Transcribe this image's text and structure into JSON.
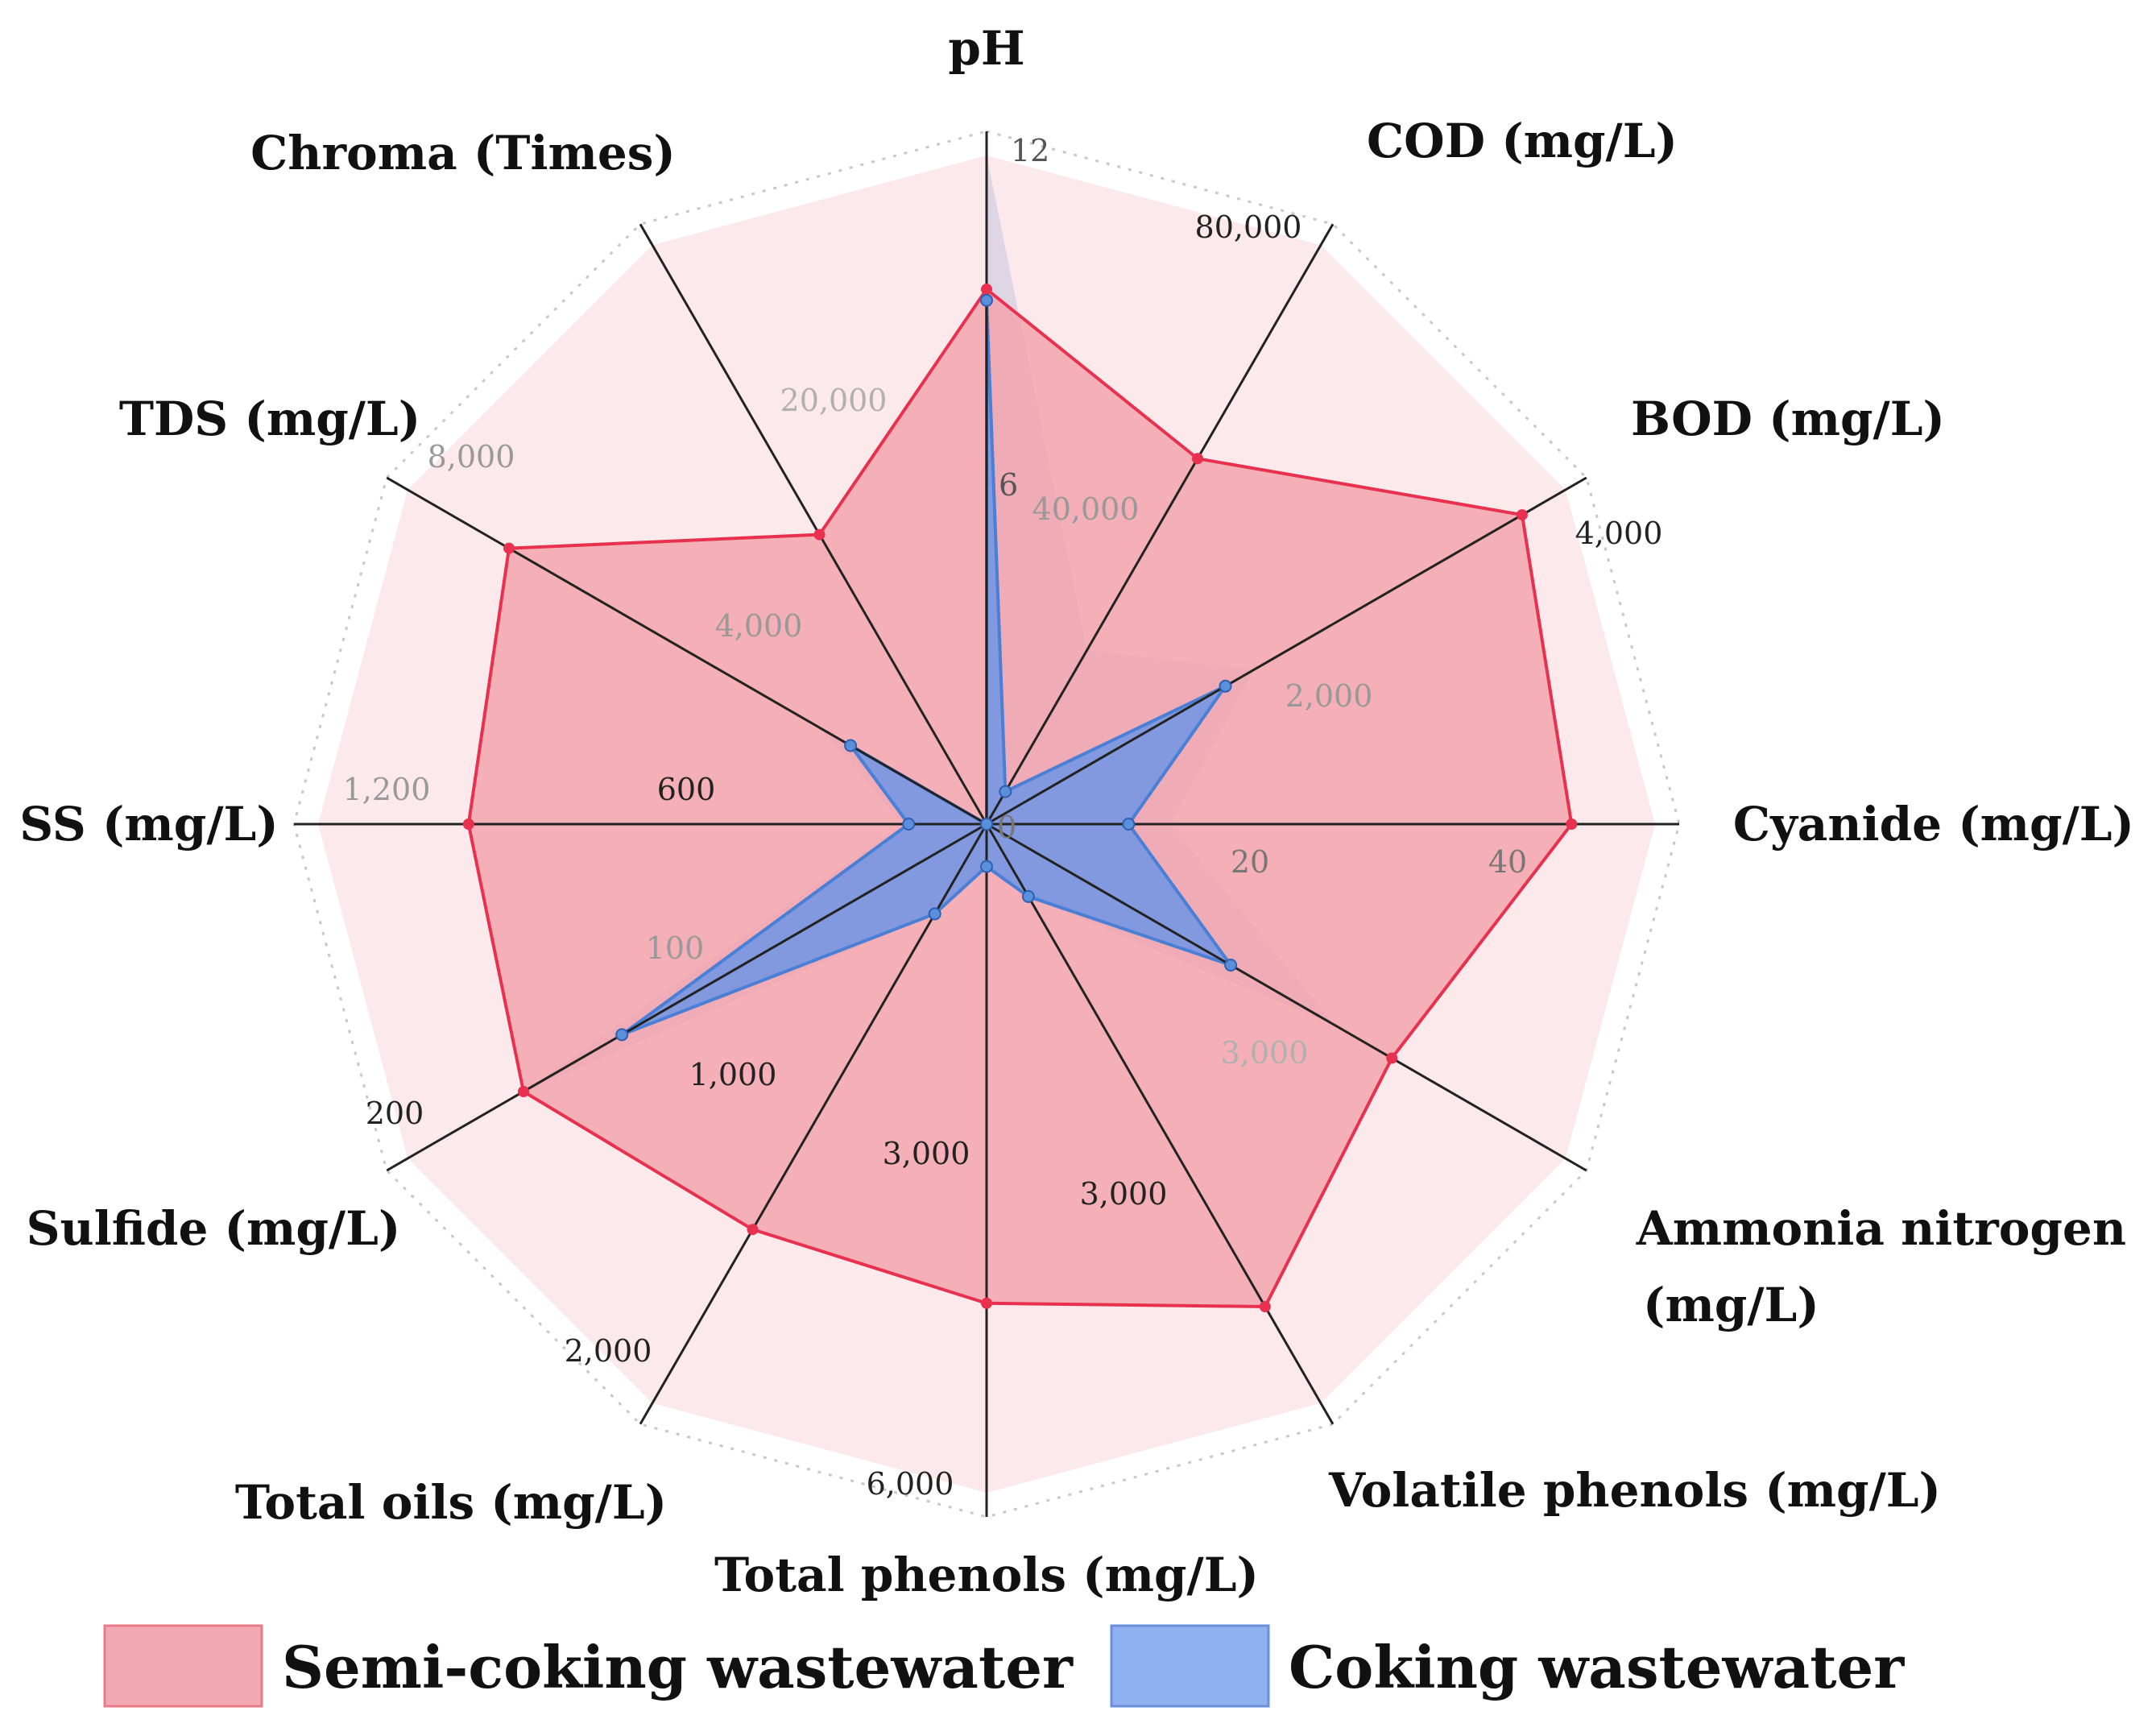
{
  "chart_data": {
    "type": "radar",
    "title": "",
    "axes": [
      {
        "name": "pH",
        "max": 12,
        "ticks": [
          "12",
          "6",
          "0"
        ]
      },
      {
        "name": "COD (mg/L)",
        "max": 80000,
        "ticks": [
          "80,000",
          "40,000"
        ]
      },
      {
        "name": "BOD (mg/L)",
        "max": 4000,
        "ticks": [
          "4,000",
          "2,000"
        ]
      },
      {
        "name": "Cyanide (mg/L)",
        "max": 40,
        "ticks": [
          "40",
          "20"
        ]
      },
      {
        "name": "Ammonia nitrogen",
        "name_line2": "(mg/L)",
        "max": 6000,
        "ticks": [
          "3,000"
        ]
      },
      {
        "name": "Volatile phenols (mg/L)",
        "max": 6000,
        "ticks": [
          "3,000"
        ]
      },
      {
        "name": "Total phenols (mg/L)",
        "max": 6000,
        "ticks": [
          "6,000",
          "3,000"
        ]
      },
      {
        "name": "Total oils (mg/L)",
        "max": 2000,
        "ticks": [
          "2,000",
          "1,000"
        ]
      },
      {
        "name": "Sulfide (mg/L)",
        "max": 200,
        "ticks": [
          "200",
          "100"
        ]
      },
      {
        "name": "SS (mg/L)",
        "max": 1200,
        "ticks": [
          "1,200",
          "600"
        ]
      },
      {
        "name": "TDS (mg/L)",
        "max": 8000,
        "ticks": [
          "8,000",
          "4,000"
        ]
      },
      {
        "name": "Chroma (Times)",
        "max": 40000,
        "ticks": [
          "20,000"
        ]
      }
    ],
    "series": [
      {
        "name": "Semi-coking wastewater",
        "color": "#e8314f",
        "fill": "#f2a0aa",
        "values": [
          9.6,
          50500,
          3700,
          35,
          4200,
          5000,
          4300,
          1400,
          160,
          930,
          6600,
          20000
        ],
        "range_max": [
          12,
          80000,
          4000,
          40,
          6000,
          6000,
          6000,
          2000,
          200,
          1200,
          8000,
          40000
        ]
      },
      {
        "name": "Coking wastewater",
        "color": "#4a7fd6",
        "fill": "#6e95e6",
        "values": [
          9.4,
          4500,
          1650,
          8.5,
          2530,
          750,
          380,
          310,
          126,
          140,
          1880,
          0
        ],
        "range_max": [
          12,
          24000,
          1850,
          11,
          3600,
          750,
          380,
          310,
          160,
          150,
          2300,
          0
        ]
      }
    ],
    "legend": {
      "position": "bottom"
    }
  }
}
